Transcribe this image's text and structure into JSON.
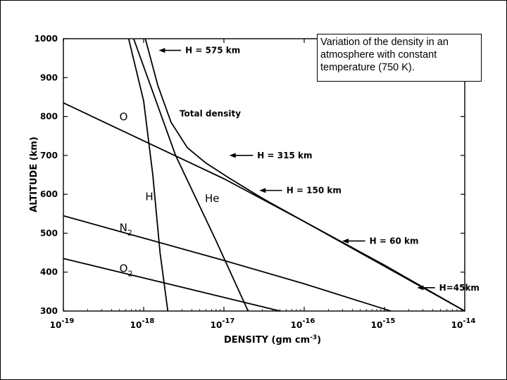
{
  "caption": "Variation of the density in an atmosphere with constant temperature (750 K).",
  "chart_data": {
    "type": "line",
    "xlabel": "DENSITY (gm cm",
    "xlabel_exp": "-3",
    "xlabel_close": ")",
    "ylabel": "ALTITUDE (km)",
    "x_scale": "log",
    "xlim": [
      1e-19,
      1e-14
    ],
    "ylim": [
      300,
      1000
    ],
    "x_ticks": [
      {
        "value": 1e-19,
        "base": "10",
        "exp": "-19"
      },
      {
        "value": 1e-18,
        "base": "10",
        "exp": "-18"
      },
      {
        "value": 1e-17,
        "base": "10",
        "exp": "-17"
      },
      {
        "value": 1e-16,
        "base": "10",
        "exp": "-16"
      },
      {
        "value": 1e-15,
        "base": "10",
        "exp": "-15"
      },
      {
        "value": 1e-14,
        "base": "10",
        "exp": "-14"
      }
    ],
    "y_ticks": [
      {
        "value": 300,
        "label": "300"
      },
      {
        "value": 400,
        "label": "400"
      },
      {
        "value": 500,
        "label": "500"
      },
      {
        "value": 600,
        "label": "600"
      },
      {
        "value": 700,
        "label": "700"
      },
      {
        "value": 800,
        "label": "800"
      },
      {
        "value": 900,
        "label": "900"
      },
      {
        "value": 1000,
        "label": "1000"
      }
    ],
    "grid": false,
    "series": [
      {
        "name": "O",
        "label": "O",
        "label_at": [
          5e-19,
          790
        ],
        "points": [
          [
            1e-19,
            835
          ],
          [
            1e-17,
            640
          ],
          [
            1e-16,
            530
          ],
          [
            1e-15,
            415
          ],
          [
            1e-14,
            300
          ]
        ]
      },
      {
        "name": "H",
        "label": "H",
        "label_at": [
          1.05e-18,
          585
        ],
        "points": [
          [
            6.5e-19,
            1000
          ],
          [
            1e-18,
            840
          ],
          [
            1.3e-18,
            650
          ],
          [
            1.6e-18,
            450
          ],
          [
            2e-18,
            300
          ]
        ]
      },
      {
        "name": "He",
        "label": "He",
        "label_at": [
          5.8e-18,
          580
        ],
        "points": [
          [
            7.5e-19,
            1000
          ],
          [
            2.5e-18,
            700
          ],
          [
            8e-18,
            480
          ],
          [
            2e-17,
            300
          ]
        ]
      },
      {
        "name": "N",
        "label": "N",
        "sub": "2",
        "label_at": [
          5e-19,
          505
        ],
        "points": [
          [
            1e-19,
            545
          ],
          [
            1e-17,
            430
          ],
          [
            1e-16,
            370
          ],
          [
            1e-15,
            305
          ],
          [
            1.2e-15,
            300
          ]
        ]
      },
      {
        "name": "O",
        "label": "O",
        "sub": "2",
        "label_at": [
          5e-19,
          400
        ],
        "points": [
          [
            1e-19,
            435
          ],
          [
            2e-18,
            370
          ],
          [
            1e-17,
            335
          ],
          [
            5e-17,
            300
          ]
        ]
      },
      {
        "name": "Total density",
        "label": "Total density",
        "label_at": [
          2.8e-18,
          800
        ],
        "points": [
          [
            1.05e-18,
            1000
          ],
          [
            1.5e-18,
            880
          ],
          [
            2.2e-18,
            785
          ],
          [
            3.5e-18,
            720
          ],
          [
            6e-18,
            680
          ],
          [
            1.2e-17,
            640
          ],
          [
            3e-17,
            590
          ],
          [
            1e-16,
            530
          ],
          [
            1e-15,
            418
          ],
          [
            1e-14,
            300
          ]
        ]
      }
    ],
    "annotations": [
      {
        "text": "H = 575 km",
        "point": [
          1.45e-18,
          970
        ],
        "text_at": [
          3.3e-18,
          970
        ]
      },
      {
        "text": "H = 315 km",
        "point": [
          1.1e-17,
          700
        ],
        "text_at": [
          2.6e-17,
          700
        ]
      },
      {
        "text": "H = 150 km",
        "point": [
          2.6e-17,
          610
        ],
        "text_at": [
          6e-17,
          610
        ]
      },
      {
        "text": "H = 60 km",
        "point": [
          2.8e-16,
          480
        ],
        "text_at": [
          6.5e-16,
          480
        ]
      },
      {
        "text": "H=45km",
        "point": [
          2.4e-15,
          360
        ],
        "text_at": [
          4.8e-15,
          360
        ]
      }
    ]
  }
}
